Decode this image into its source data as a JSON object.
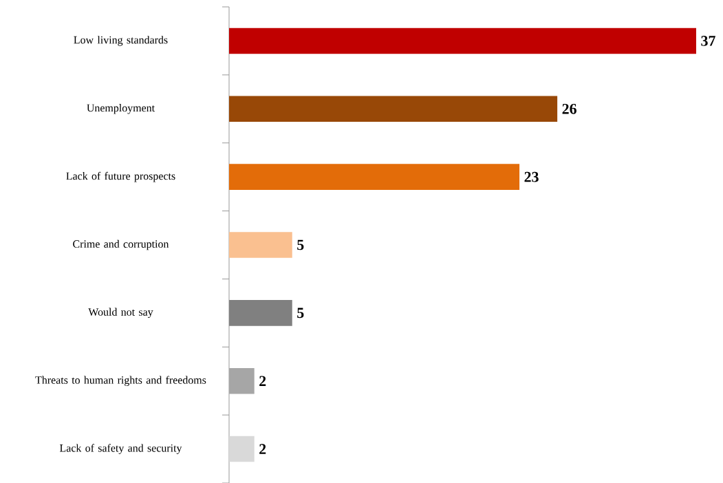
{
  "chart_data": {
    "type": "bar",
    "orientation": "horizontal",
    "data_labels": true,
    "categories": [
      "Low living standards",
      "Unemployment",
      "Lack of future prospects",
      "Crime and corruption",
      "Would not say",
      "Threats to human rights and freedoms",
      "Lack of safety and security"
    ],
    "values": [
      37,
      26,
      23,
      5,
      5,
      2,
      2
    ],
    "colors": [
      "#c00000",
      "#984807",
      "#e36c09",
      "#fac090",
      "#808080",
      "#a6a6a6",
      "#d9d9d9"
    ]
  }
}
